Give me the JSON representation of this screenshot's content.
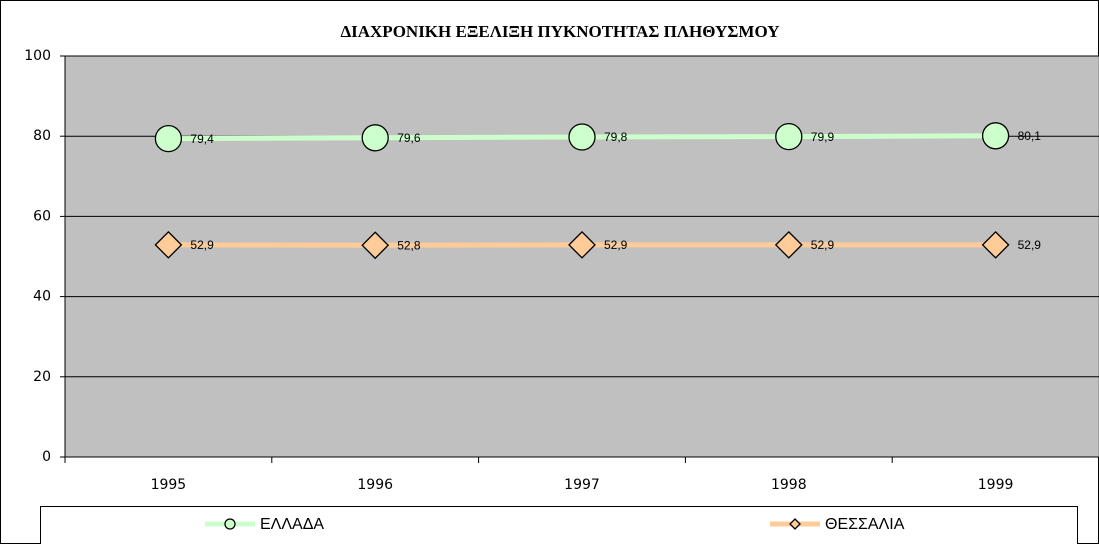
{
  "chart_data": {
    "type": "line",
    "title": "ΔΙΑΧΡΟΝΙΚΗ ΕΞΕΛΙΞΗ ΠΥΚΝΟΤΗΤΑΣ ΠΛΗΘΥΣΜΟΥ",
    "categories": [
      "1995",
      "1996",
      "1997",
      "1998",
      "1999"
    ],
    "series": [
      {
        "name": "ΕΛΛΑΔΑ",
        "color": "#ccffcc",
        "marker": "circle",
        "values": [
          79.4,
          79.6,
          79.8,
          79.9,
          80.1
        ],
        "value_labels": [
          "79,4",
          "79,6",
          "79,8",
          "79,9",
          "80,1"
        ]
      },
      {
        "name": "ΘΕΣΣΑΛΙΑ",
        "color": "#ffcc99",
        "marker": "diamond",
        "values": [
          52.9,
          52.8,
          52.9,
          52.9,
          52.9
        ],
        "value_labels": [
          "52,9",
          "52,8",
          "52,9",
          "52,9",
          "52,9"
        ]
      }
    ],
    "ylim": [
      0,
      100
    ],
    "yticks": [
      0,
      20,
      40,
      60,
      80,
      100
    ],
    "grid": true,
    "legend": "bottom",
    "plot_background": "#c0c0c0"
  }
}
